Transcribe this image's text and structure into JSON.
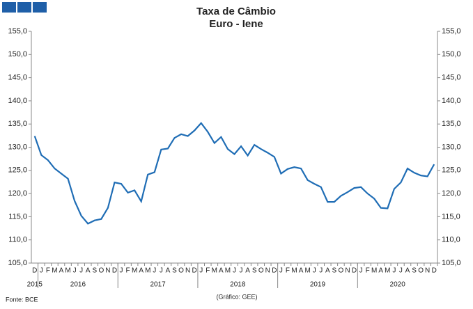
{
  "chart_data": {
    "type": "line",
    "title": "Taxa de Câmbio",
    "subtitle": "Euro - Iene",
    "source": "Fonte: BCE",
    "credit": "(Gráfico: GEE)",
    "categories": [
      "D",
      "J",
      "F",
      "M",
      "A",
      "M",
      "J",
      "J",
      "A",
      "S",
      "O",
      "N",
      "D",
      "J",
      "F",
      "M",
      "A",
      "M",
      "J",
      "J",
      "A",
      "S",
      "O",
      "N",
      "D",
      "J",
      "F",
      "M",
      "A",
      "M",
      "J",
      "J",
      "A",
      "S",
      "O",
      "N",
      "D",
      "J",
      "F",
      "M",
      "A",
      "M",
      "J",
      "J",
      "A",
      "S",
      "O",
      "N",
      "D",
      "J",
      "F",
      "M",
      "A",
      "M",
      "J",
      "J",
      "A",
      "S",
      "O",
      "N",
      "D"
    ],
    "year_labels": [
      "2015",
      "2016",
      "2017",
      "2018",
      "2019",
      "2020"
    ],
    "series": [
      {
        "color": "#1f6db5",
        "values": [
          132.4,
          128.3,
          127.2,
          125.4,
          124.3,
          123.2,
          118.4,
          115.2,
          113.5,
          114.2,
          114.5,
          116.9,
          122.4,
          122.1,
          120.2,
          120.7,
          118.3,
          124.1,
          124.6,
          129.5,
          129.7,
          132.0,
          132.8,
          132.4,
          133.6,
          135.2,
          133.3,
          130.9,
          132.2,
          129.6,
          128.5,
          130.2,
          128.2,
          130.5,
          129.6,
          128.8,
          127.9,
          124.3,
          125.3,
          125.7,
          125.4,
          122.9,
          122.1,
          121.4,
          118.2,
          118.2,
          119.5,
          120.3,
          121.2,
          121.4,
          120.0,
          118.9,
          116.9,
          116.8,
          121.0,
          122.4,
          125.4,
          124.5,
          123.9,
          123.7,
          126.3
        ]
      }
    ],
    "ylim": [
      105,
      155
    ],
    "yticks": [
      {
        "value": 105,
        "label": "105,0"
      },
      {
        "value": 110,
        "label": "110,0"
      },
      {
        "value": 115,
        "label": "115,0"
      },
      {
        "value": 120,
        "label": "120,0"
      },
      {
        "value": 125,
        "label": "125,0"
      },
      {
        "value": 130,
        "label": "130,0"
      },
      {
        "value": 135,
        "label": "135,0"
      },
      {
        "value": 140,
        "label": "140,0"
      },
      {
        "value": 145,
        "label": "145,0"
      },
      {
        "value": 150,
        "label": "150,0"
      },
      {
        "value": 155,
        "label": "155,0"
      }
    ],
    "y2lim": [
      105,
      155
    ],
    "y2ticks": [
      {
        "value": 105,
        "label": "105,0"
      },
      {
        "value": 110,
        "label": "110,0"
      },
      {
        "value": 115,
        "label": "115,0"
      },
      {
        "value": 120,
        "label": "120,0"
      },
      {
        "value": 125,
        "label": "125,0"
      },
      {
        "value": 130,
        "label": "130,0"
      },
      {
        "value": 135,
        "label": "135,0"
      },
      {
        "value": 140,
        "label": "140,0"
      },
      {
        "value": 145,
        "label": "145,0"
      },
      {
        "value": 150,
        "label": "150,0"
      },
      {
        "value": 155,
        "label": "155,0"
      }
    ],
    "grid": false
  }
}
